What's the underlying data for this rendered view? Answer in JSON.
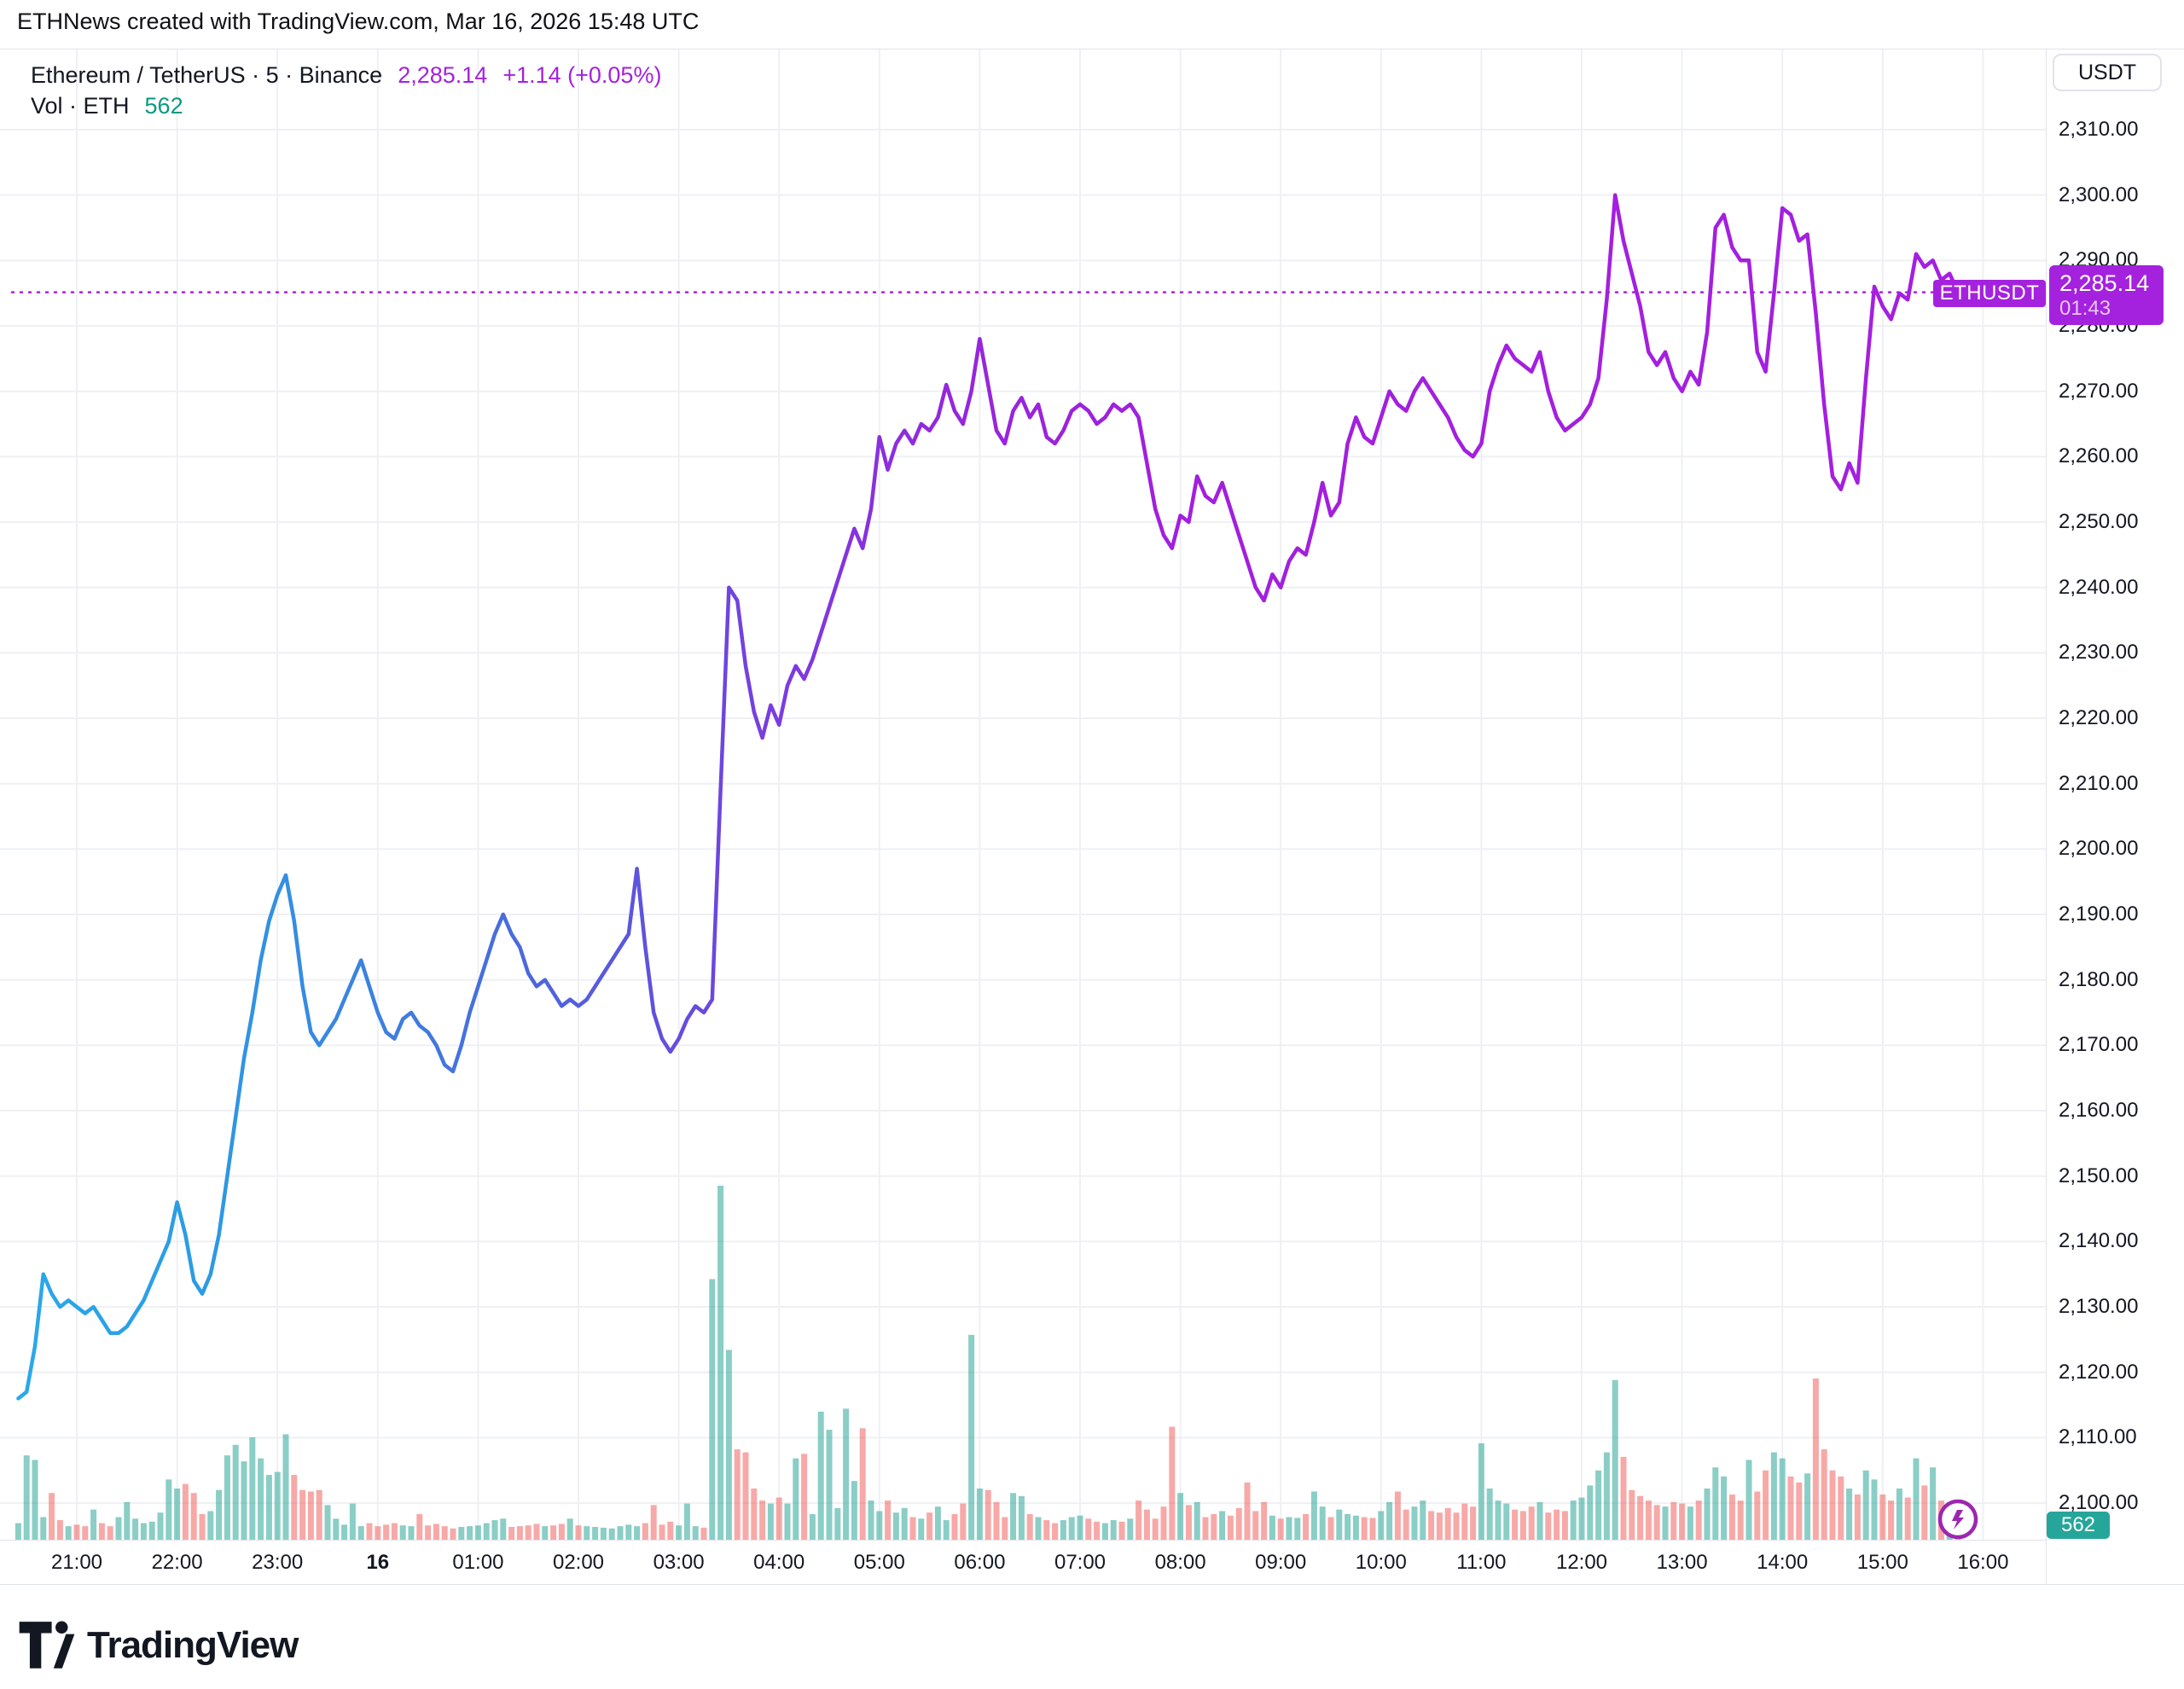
{
  "header": {
    "title": "ETHNews created with TradingView.com, Mar 16, 2026 15:48 UTC"
  },
  "legend": {
    "symbol_line": "Ethereum / TetherUS · 5 · Binance",
    "price": "2,285.14",
    "change": "+1.14 (+0.05%)",
    "vol_label": "Vol · ETH",
    "vol_value": "562"
  },
  "axis": {
    "currency_button": "USDT",
    "price_ticks": [
      {
        "label": "2,310.00",
        "value": 2310
      },
      {
        "label": "2,300.00",
        "value": 2300
      },
      {
        "label": "2,290.00",
        "value": 2290
      },
      {
        "label": "2,280.00",
        "value": 2280
      },
      {
        "label": "2,270.00",
        "value": 2270
      },
      {
        "label": "2,260.00",
        "value": 2260
      },
      {
        "label": "2,250.00",
        "value": 2250
      },
      {
        "label": "2,240.00",
        "value": 2240
      },
      {
        "label": "2,230.00",
        "value": 2230
      },
      {
        "label": "2,220.00",
        "value": 2220
      },
      {
        "label": "2,210.00",
        "value": 2210
      },
      {
        "label": "2,200.00",
        "value": 2200
      },
      {
        "label": "2,190.00",
        "value": 2190
      },
      {
        "label": "2,180.00",
        "value": 2180
      },
      {
        "label": "2,170.00",
        "value": 2170
      },
      {
        "label": "2,160.00",
        "value": 2160
      },
      {
        "label": "2,150.00",
        "value": 2150
      },
      {
        "label": "2,140.00",
        "value": 2140
      },
      {
        "label": "2,130.00",
        "value": 2130
      },
      {
        "label": "2,120.00",
        "value": 2120
      },
      {
        "label": "2,110.00",
        "value": 2110
      },
      {
        "label": "2,100.00",
        "value": 2100
      }
    ],
    "time_ticks": [
      {
        "label": "21:00",
        "h": 0,
        "bold": false
      },
      {
        "label": "22:00",
        "h": 1,
        "bold": false
      },
      {
        "label": "23:00",
        "h": 2,
        "bold": false
      },
      {
        "label": "16",
        "h": 3,
        "bold": true
      },
      {
        "label": "01:00",
        "h": 4,
        "bold": false
      },
      {
        "label": "02:00",
        "h": 5,
        "bold": false
      },
      {
        "label": "03:00",
        "h": 6,
        "bold": false
      },
      {
        "label": "04:00",
        "h": 7,
        "bold": false
      },
      {
        "label": "05:00",
        "h": 8,
        "bold": false
      },
      {
        "label": "06:00",
        "h": 9,
        "bold": false
      },
      {
        "label": "07:00",
        "h": 10,
        "bold": false
      },
      {
        "label": "08:00",
        "h": 11,
        "bold": false
      },
      {
        "label": "09:00",
        "h": 12,
        "bold": false
      },
      {
        "label": "10:00",
        "h": 13,
        "bold": false
      },
      {
        "label": "11:00",
        "h": 14,
        "bold": false
      },
      {
        "label": "12:00",
        "h": 15,
        "bold": false
      },
      {
        "label": "13:00",
        "h": 16,
        "bold": false
      },
      {
        "label": "14:00",
        "h": 17,
        "bold": false
      },
      {
        "label": "15:00",
        "h": 18,
        "bold": false
      },
      {
        "label": "16:00",
        "h": 19,
        "bold": false
      }
    ]
  },
  "price_label": {
    "symbol": "ETHUSDT",
    "price": "2,285.14",
    "countdown": "01:43"
  },
  "volume_badge": "562",
  "footer": {
    "logo_text": "TradingView"
  },
  "colors": {
    "accent_purple": "#a422dd",
    "line_gradient": [
      "#2aa9e9",
      "#2b9ce4",
      "#3b82e0",
      "#4d66dc",
      "#6150dd",
      "#7d3ae0",
      "#9527dc",
      "#a21fdd",
      "#a51fe0"
    ],
    "volume_up": "rgba(42,166,152,0.55)",
    "volume_down": "rgba(239,83,80,0.5)",
    "vol_text_teal": "#089981",
    "grid": "#eef0f4",
    "border": "#e0e3eb",
    "text": "#131722"
  },
  "chart_data": {
    "type": "line",
    "title": "Ethereum / TetherUS · 5 · Binance",
    "symbol": "ETHUSDT",
    "exchange": "Binance",
    "interval_minutes": 5,
    "currency": "USDT",
    "start_time": "20:25",
    "end_time": "15:45",
    "last_price": 2285.14,
    "change_text": "+1.14 (+0.05%)",
    "current_bar_volume_eth": 562,
    "ylim": [
      2095,
      2312
    ],
    "grid": true,
    "prices": [
      2116,
      2117,
      2124,
      2135,
      2132,
      2130,
      2131,
      2130,
      2129,
      2130,
      2128,
      2126,
      2126,
      2127,
      2129,
      2131,
      2134,
      2137,
      2140,
      2146,
      2141,
      2134,
      2132,
      2135,
      2141,
      2150,
      2159,
      2168,
      2175,
      2183,
      2189,
      2193,
      2196,
      2189,
      2179,
      2172,
      2170,
      2172,
      2174,
      2177,
      2180,
      2183,
      2179,
      2175,
      2172,
      2171,
      2174,
      2175,
      2173,
      2172,
      2170,
      2167,
      2166,
      2170,
      2175,
      2179,
      2183,
      2187,
      2190,
      2187,
      2185,
      2181,
      2179,
      2180,
      2178,
      2176,
      2177,
      2176,
      2177,
      2179,
      2181,
      2183,
      2185,
      2187,
      2197,
      2185,
      2175,
      2171,
      2169,
      2171,
      2174,
      2176,
      2175,
      2177,
      2209,
      2240,
      2238,
      2228,
      2221,
      2217,
      2222,
      2219,
      2225,
      2228,
      2226,
      2229,
      2233,
      2237,
      2241,
      2245,
      2249,
      2246,
      2252,
      2263,
      2258,
      2262,
      2264,
      2262,
      2265,
      2264,
      2266,
      2271,
      2267,
      2265,
      2270,
      2278,
      2271,
      2264,
      2262,
      2267,
      2269,
      2266,
      2268,
      2263,
      2262,
      2264,
      2267,
      2268,
      2267,
      2265,
      2266,
      2268,
      2267,
      2268,
      2266,
      2259,
      2252,
      2248,
      2246,
      2251,
      2250,
      2257,
      2254,
      2253,
      2256,
      2252,
      2248,
      2244,
      2240,
      2238,
      2242,
      2240,
      2244,
      2246,
      2245,
      2250,
      2256,
      2251,
      2253,
      2262,
      2266,
      2263,
      2262,
      2266,
      2270,
      2268,
      2267,
      2270,
      2272,
      2270,
      2268,
      2266,
      2263,
      2261,
      2260,
      2262,
      2270,
      2274,
      2277,
      2275,
      2274,
      2273,
      2276,
      2270,
      2266,
      2264,
      2265,
      2266,
      2268,
      2272,
      2284,
      2300,
      2293,
      2288,
      2283,
      2276,
      2274,
      2276,
      2272,
      2270,
      2273,
      2271,
      2279,
      2295,
      2297,
      2292,
      2290,
      2290,
      2276,
      2273,
      2285,
      2298,
      2297,
      2293,
      2294,
      2282,
      2268,
      2257,
      2255,
      2259,
      2256,
      2272,
      2286,
      2283,
      2281,
      2285,
      2284,
      2291,
      2289,
      2290,
      2287,
      2288,
      2285.14
    ],
    "volumes_eth": [
      1100,
      5600,
      5300,
      1500,
      3100,
      1300,
      900,
      1000,
      900,
      2000,
      1100,
      900,
      1500,
      2500,
      1400,
      1100,
      1200,
      1800,
      4000,
      3400,
      3700,
      3100,
      1700,
      1900,
      3300,
      5600,
      6300,
      5200,
      6800,
      5400,
      4300,
      4500,
      7000,
      4300,
      3300,
      3200,
      3300,
      2300,
      1400,
      1000,
      2400,
      900,
      1100,
      900,
      1000,
      1100,
      950,
      900,
      1700,
      950,
      1050,
      900,
      750,
      850,
      900,
      950,
      1100,
      1300,
      1400,
      850,
      900,
      950,
      1050,
      900,
      950,
      1050,
      1400,
      950,
      900,
      850,
      800,
      750,
      900,
      1000,
      900,
      1100,
      2300,
      1000,
      1200,
      950,
      2400,
      900,
      800,
      17300,
      23500,
      12600,
      6000,
      5800,
      3400,
      2600,
      2400,
      2800,
      2400,
      5400,
      5700,
      1700,
      8500,
      7300,
      2100,
      8700,
      3900,
      7400,
      2600,
      1900,
      2600,
      1800,
      2100,
      1500,
      1400,
      1800,
      2200,
      1300,
      1700,
      2400,
      13600,
      3400,
      3300,
      2500,
      1500,
      3100,
      2900,
      1700,
      1500,
      1300,
      1100,
      1300,
      1500,
      1600,
      1400,
      1200,
      1100,
      1300,
      1200,
      1400,
      2600,
      2000,
      1400,
      2200,
      7500,
      3100,
      2300,
      2500,
      1500,
      1700,
      1900,
      1600,
      2100,
      3800,
      1900,
      2500,
      1600,
      1400,
      1500,
      1450,
      1700,
      3200,
      2200,
      1500,
      2000,
      1700,
      1600,
      1500,
      1450,
      1900,
      2500,
      3200,
      2000,
      2200,
      2600,
      1900,
      1800,
      2100,
      1800,
      2400,
      2200,
      6400,
      3400,
      2600,
      2400,
      2000,
      1900,
      2200,
      2500,
      1800,
      2000,
      1900,
      2600,
      2800,
      3600,
      4600,
      5800,
      10600,
      5500,
      3300,
      2900,
      2600,
      2300,
      2200,
      2500,
      2400,
      2200,
      2600,
      3400,
      4800,
      4200,
      3000,
      2600,
      5300,
      3200,
      4600,
      5800,
      5400,
      4200,
      3800,
      4400,
      10700,
      6000,
      4600,
      4200,
      3400,
      3000,
      4600,
      4000,
      3000,
      2600,
      3400,
      2800,
      5400,
      3600,
      4800,
      2600,
      1800,
      562
    ]
  }
}
